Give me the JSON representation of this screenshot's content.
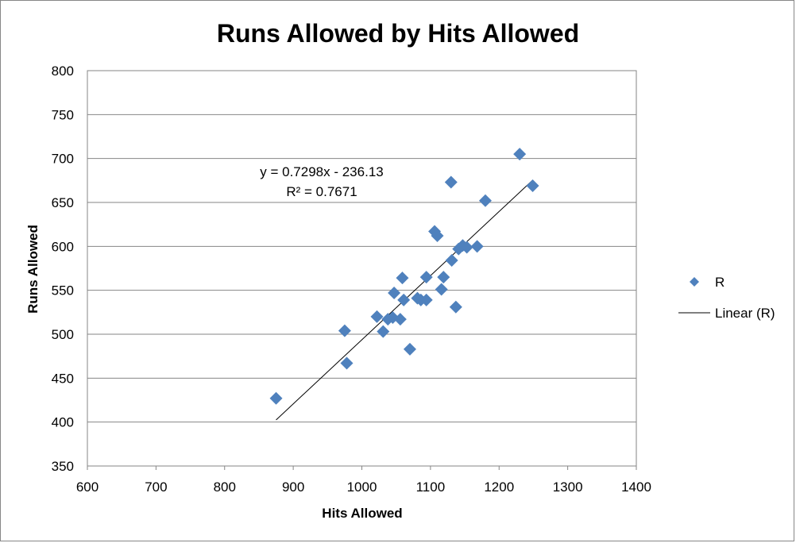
{
  "chart_data": {
    "type": "scatter",
    "title": "Runs Allowed by Hits Allowed",
    "xlabel": "Hits Allowed",
    "ylabel": "Runs Allowed",
    "xlim": [
      600,
      1400
    ],
    "ylim": [
      350,
      800
    ],
    "x_ticks": [
      600,
      700,
      800,
      900,
      1000,
      1100,
      1200,
      1300,
      1400
    ],
    "y_ticks": [
      350,
      400,
      450,
      500,
      550,
      600,
      650,
      700,
      750,
      800
    ],
    "grid": "horizontal",
    "legend_position": "right",
    "series": [
      {
        "name": "R",
        "color": "#4F81BD",
        "marker": "diamond",
        "points": [
          [
            875,
            427
          ],
          [
            975,
            504
          ],
          [
            978,
            467
          ],
          [
            1022,
            520
          ],
          [
            1031,
            503
          ],
          [
            1038,
            517
          ],
          [
            1045,
            519
          ],
          [
            1047,
            547
          ],
          [
            1056,
            517
          ],
          [
            1059,
            564
          ],
          [
            1061,
            539
          ],
          [
            1070,
            483
          ],
          [
            1081,
            541
          ],
          [
            1086,
            539
          ],
          [
            1094,
            565
          ],
          [
            1094,
            539
          ],
          [
            1106,
            617
          ],
          [
            1110,
            612
          ],
          [
            1116,
            551
          ],
          [
            1119,
            565
          ],
          [
            1130,
            673
          ],
          [
            1131,
            584
          ],
          [
            1137,
            531
          ],
          [
            1141,
            597
          ],
          [
            1147,
            601
          ],
          [
            1153,
            599
          ],
          [
            1168,
            600
          ],
          [
            1180,
            652
          ],
          [
            1230,
            705
          ],
          [
            1249,
            669
          ]
        ]
      }
    ],
    "trendline": {
      "name": "Linear (R)",
      "type": "linear",
      "slope": 0.7298,
      "intercept": -236.13,
      "x_range": [
        875,
        1249
      ],
      "color": "#000000",
      "equation_text": "y = 0.7298x - 236.13",
      "r2_text": "R² = 0.7671"
    }
  }
}
